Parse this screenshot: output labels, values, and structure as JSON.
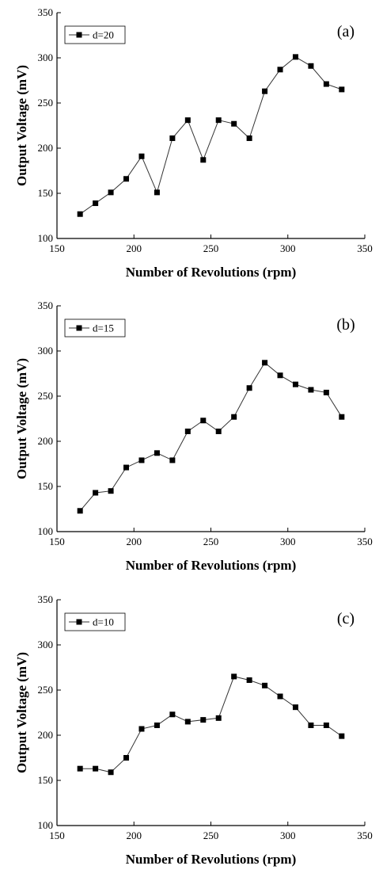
{
  "chart_data": [
    {
      "type": "line",
      "panel_label": "(a)",
      "xlabel": "Number of Revolutions (rpm)",
      "ylabel": "Output Voltage (mV)",
      "xlim": [
        150,
        350
      ],
      "ylim": [
        100,
        350
      ],
      "xticks": [
        150,
        200,
        250,
        300,
        350
      ],
      "yticks": [
        100,
        150,
        200,
        250,
        300,
        350
      ],
      "legend_position": "top-left",
      "series": [
        {
          "name": "d=20",
          "marker": "square",
          "x": [
            165,
            175,
            185,
            195,
            205,
            215,
            225,
            235,
            245,
            255,
            265,
            275,
            285,
            295,
            305,
            315,
            325,
            335
          ],
          "y": [
            127,
            139,
            151,
            166,
            191,
            151,
            211,
            231,
            187,
            231,
            227,
            211,
            263,
            287,
            301,
            291,
            271,
            265
          ]
        }
      ]
    },
    {
      "type": "line",
      "panel_label": "(b)",
      "xlabel": "Number of Revolutions (rpm)",
      "ylabel": "Output Voltage (mV)",
      "xlim": [
        150,
        350
      ],
      "ylim": [
        100,
        350
      ],
      "xticks": [
        150,
        200,
        250,
        300,
        350
      ],
      "yticks": [
        100,
        150,
        200,
        250,
        300,
        350
      ],
      "legend_position": "top-left",
      "series": [
        {
          "name": "d=15",
          "marker": "square",
          "x": [
            165,
            175,
            185,
            195,
            205,
            215,
            225,
            235,
            245,
            255,
            265,
            275,
            285,
            295,
            305,
            315,
            325,
            335
          ],
          "y": [
            123,
            143,
            145,
            171,
            179,
            187,
            179,
            211,
            223,
            211,
            227,
            259,
            287,
            273,
            263,
            257,
            254,
            227
          ]
        }
      ]
    },
    {
      "type": "line",
      "panel_label": "(c)",
      "xlabel": "Number of Revolutions (rpm)",
      "ylabel": "Output Voltage (mV)",
      "xlim": [
        150,
        350
      ],
      "ylim": [
        100,
        350
      ],
      "xticks": [
        150,
        200,
        250,
        300,
        350
      ],
      "yticks": [
        100,
        150,
        200,
        250,
        300,
        350
      ],
      "legend_position": "top-left",
      "series": [
        {
          "name": "d=10",
          "marker": "square",
          "x": [
            165,
            175,
            185,
            195,
            205,
            215,
            225,
            235,
            245,
            255,
            265,
            275,
            285,
            295,
            305,
            315,
            325,
            335
          ],
          "y": [
            163,
            163,
            159,
            175,
            207,
            211,
            223,
            215,
            217,
            219,
            265,
            261,
            255,
            243,
            231,
            211,
            211,
            199
          ]
        }
      ]
    }
  ]
}
